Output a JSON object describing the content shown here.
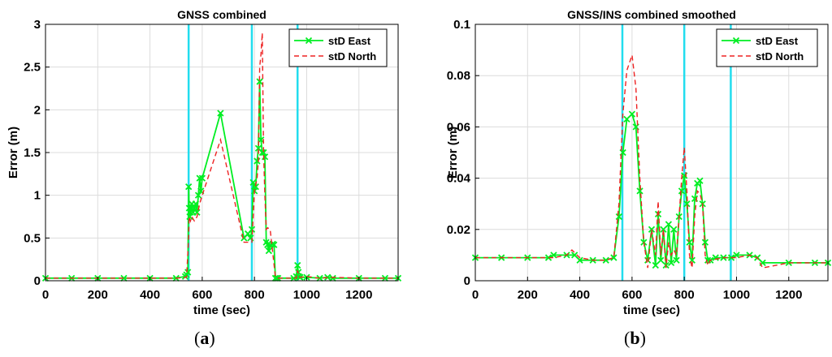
{
  "panels": [
    {
      "caption": {
        "open": "(",
        "letter": "a",
        "close": ")"
      }
    },
    {
      "caption": {
        "open": "(",
        "letter": "b",
        "close": ")"
      }
    }
  ],
  "colors": {
    "east": "#00ee22",
    "north": "#ee2222",
    "vline": "#22ddee",
    "grid": "#dcdcdc",
    "axis": "#000000"
  },
  "chart_data": [
    {
      "type": "line",
      "title": "GNSS combined",
      "xlabel": "time (sec)",
      "ylabel": "Error (m)",
      "xlim": [
        0,
        1350
      ],
      "ylim": [
        0,
        3
      ],
      "xticks": [
        0,
        200,
        400,
        600,
        800,
        1000,
        1200
      ],
      "xtick_labels": [
        "0",
        "200",
        "400",
        "600",
        "800",
        "1000",
        "1200"
      ],
      "yticks": [
        0,
        0.5,
        1,
        1.5,
        2,
        2.5,
        3
      ],
      "ytick_labels": [
        "0",
        "0.5",
        "1",
        "1.5",
        "2",
        "2.5",
        "3"
      ],
      "grid": true,
      "legend_position": "top-right",
      "vertical_lines": [
        548,
        790,
        965
      ],
      "series": [
        {
          "name": "stD East",
          "style": "solid-x",
          "x": [
            0,
            100,
            200,
            300,
            400,
            500,
            535,
            540,
            545,
            548,
            550,
            552,
            555,
            558,
            560,
            565,
            570,
            575,
            580,
            585,
            590,
            595,
            600,
            670,
            760,
            775,
            785,
            790,
            795,
            800,
            805,
            810,
            815,
            820,
            825,
            830,
            835,
            840,
            845,
            850,
            855,
            860,
            870,
            875,
            880,
            885,
            890,
            950,
            960,
            965,
            968,
            970,
            975,
            1000,
            1050,
            1080,
            1100,
            1200,
            1300,
            1350
          ],
          "y": [
            0.03,
            0.03,
            0.03,
            0.03,
            0.03,
            0.03,
            0.05,
            0.07,
            0.1,
            1.1,
            0.85,
            0.75,
            0.8,
            0.85,
            0.9,
            0.8,
            0.85,
            0.9,
            0.8,
            1.0,
            1.2,
            1.05,
            1.2,
            1.96,
            0.5,
            0.55,
            0.5,
            0.6,
            1.15,
            1.05,
            1.1,
            1.4,
            1.55,
            2.33,
            1.65,
            1.5,
            1.5,
            1.45,
            0.45,
            0.42,
            0.35,
            0.42,
            0.43,
            0.42,
            0.03,
            0.03,
            0.03,
            0.03,
            0.05,
            0.18,
            0.1,
            0.05,
            0.04,
            0.04,
            0.03,
            0.04,
            0.03,
            0.03,
            0.03,
            0.03
          ]
        },
        {
          "name": "stD North",
          "style": "dashed",
          "x": [
            0,
            100,
            200,
            300,
            400,
            500,
            540,
            548,
            550,
            555,
            560,
            570,
            580,
            590,
            600,
            670,
            760,
            775,
            790,
            800,
            810,
            815,
            820,
            825,
            830,
            835,
            840,
            845,
            850,
            860,
            880,
            890,
            960,
            965,
            970,
            975,
            1000,
            1050,
            1100,
            1200,
            1300,
            1350
          ],
          "y": [
            0.03,
            0.03,
            0.03,
            0.03,
            0.03,
            0.03,
            0.04,
            0.5,
            0.75,
            0.7,
            0.75,
            0.7,
            0.75,
            0.9,
            1.0,
            1.65,
            0.45,
            0.45,
            0.45,
            1.05,
            1.2,
            1.4,
            2.5,
            2.65,
            2.9,
            1.5,
            1.0,
            0.6,
            0.62,
            0.6,
            0.05,
            0.03,
            0.03,
            0.12,
            0.05,
            0.04,
            0.05,
            0.03,
            0.04,
            0.03,
            0.03,
            0.03
          ]
        }
      ]
    },
    {
      "type": "line",
      "title": "GNSS/INS combined smoothed",
      "xlabel": "time (sec)",
      "ylabel": "Error (m)",
      "xlim": [
        0,
        1350
      ],
      "ylim": [
        0,
        0.1
      ],
      "xticks": [
        0,
        200,
        400,
        600,
        800,
        1000,
        1200
      ],
      "xtick_labels": [
        "0",
        "200",
        "400",
        "600",
        "800",
        "1000",
        "1200"
      ],
      "yticks": [
        0,
        0.02,
        0.04,
        0.06,
        0.08,
        0.1
      ],
      "ytick_labels": [
        "0",
        "0.02",
        "0.04",
        "0.06",
        "0.08",
        "0.1"
      ],
      "grid": true,
      "legend_position": "top-right",
      "vertical_lines": [
        563,
        800,
        978
      ],
      "series": [
        {
          "name": "stD East",
          "style": "solid-x",
          "x": [
            0,
            100,
            200,
            280,
            300,
            350,
            380,
            400,
            450,
            500,
            530,
            550,
            565,
            580,
            600,
            615,
            630,
            645,
            660,
            675,
            690,
            700,
            710,
            720,
            730,
            740,
            750,
            760,
            770,
            780,
            790,
            800,
            810,
            820,
            830,
            840,
            850,
            860,
            870,
            880,
            890,
            900,
            920,
            950,
            980,
            1000,
            1050,
            1080,
            1100,
            1200,
            1300,
            1350
          ],
          "y": [
            0.009,
            0.009,
            0.009,
            0.009,
            0.01,
            0.01,
            0.01,
            0.008,
            0.008,
            0.008,
            0.009,
            0.025,
            0.05,
            0.063,
            0.065,
            0.06,
            0.035,
            0.015,
            0.008,
            0.02,
            0.006,
            0.026,
            0.008,
            0.02,
            0.006,
            0.022,
            0.007,
            0.02,
            0.008,
            0.025,
            0.035,
            0.041,
            0.03,
            0.015,
            0.008,
            0.032,
            0.038,
            0.039,
            0.03,
            0.015,
            0.008,
            0.008,
            0.009,
            0.009,
            0.009,
            0.01,
            0.01,
            0.009,
            0.007,
            0.007,
            0.007,
            0.007
          ]
        },
        {
          "name": "stD North",
          "style": "dashed",
          "x": [
            0,
            100,
            200,
            300,
            350,
            370,
            400,
            450,
            500,
            530,
            550,
            565,
            580,
            600,
            615,
            630,
            645,
            660,
            675,
            690,
            700,
            710,
            720,
            730,
            740,
            750,
            760,
            770,
            780,
            790,
            800,
            810,
            820,
            830,
            840,
            850,
            860,
            870,
            880,
            890,
            900,
            950,
            1000,
            1050,
            1080,
            1100,
            1200,
            1300,
            1350
          ],
          "y": [
            0.009,
            0.009,
            0.009,
            0.009,
            0.01,
            0.012,
            0.009,
            0.008,
            0.008,
            0.009,
            0.03,
            0.065,
            0.082,
            0.088,
            0.075,
            0.04,
            0.015,
            0.005,
            0.02,
            0.01,
            0.031,
            0.01,
            0.02,
            0.005,
            0.015,
            0.01,
            0.012,
            0.01,
            0.025,
            0.04,
            0.052,
            0.035,
            0.01,
            0.005,
            0.025,
            0.035,
            0.034,
            0.03,
            0.01,
            0.006,
            0.008,
            0.009,
            0.009,
            0.01,
            0.009,
            0.005,
            0.007,
            0.007,
            0.007
          ]
        }
      ]
    }
  ]
}
